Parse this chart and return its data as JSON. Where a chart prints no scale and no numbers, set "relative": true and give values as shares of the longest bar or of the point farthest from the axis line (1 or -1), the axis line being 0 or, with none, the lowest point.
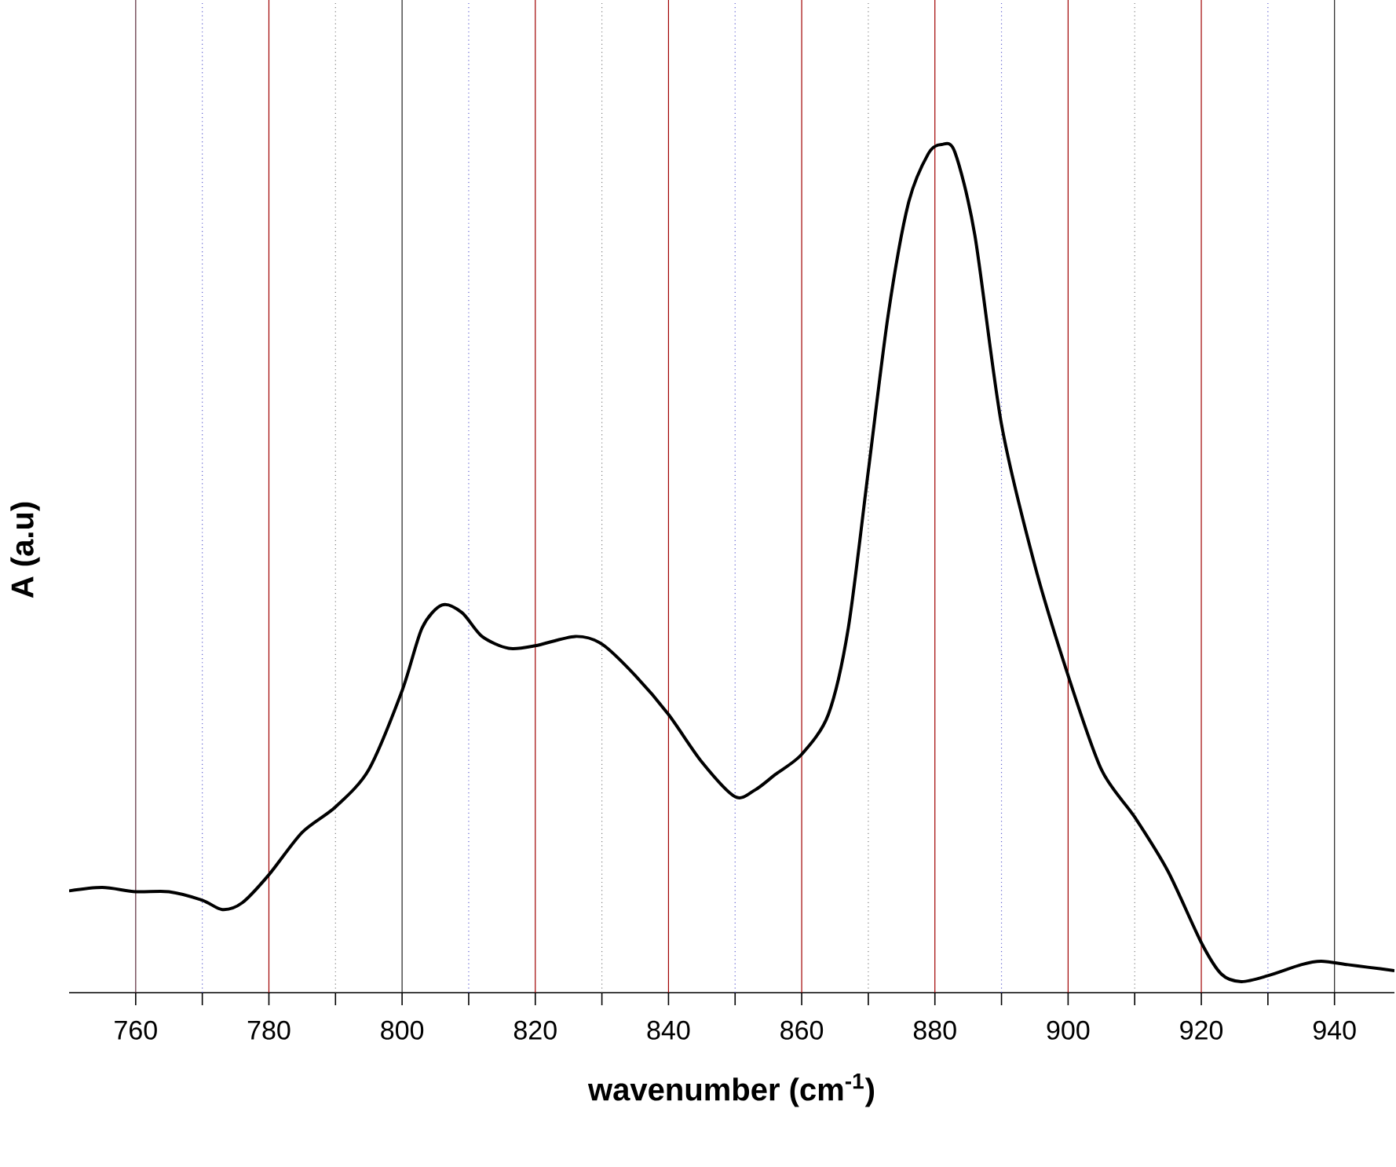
{
  "chart_data": {
    "type": "line",
    "relative": true,
    "xlabel": "wavenumber (cm$^{-1}$)",
    "ylabel": "A (a.u)",
    "xlim": [
      750,
      949
    ],
    "xticks": [
      760,
      {
        "value": 770,
        "label": null
      },
      780,
      {
        "value": 790,
        "label": null
      },
      800,
      {
        "value": 810,
        "label": null
      },
      820,
      {
        "value": 830,
        "label": null
      },
      840,
      {
        "value": 850,
        "label": null
      },
      860,
      {
        "value": 870,
        "label": null
      },
      880,
      {
        "value": 890,
        "label": null
      },
      900,
      {
        "value": 910,
        "label": null
      },
      920,
      {
        "value": 930,
        "label": null
      },
      940
    ],
    "marker": "none",
    "line_style": "solid",
    "tick_labels": "x",
    "series": [
      {
        "color": "#000000",
        "x": [
          750,
          755,
          760,
          765,
          770,
          773,
          776,
          780,
          785,
          790,
          795,
          800,
          803,
          806,
          809,
          812,
          816,
          820,
          826,
          830,
          835,
          840,
          845,
          850,
          853,
          856,
          860,
          864,
          867,
          870,
          873,
          876,
          879,
          881,
          883,
          886,
          890,
          895,
          900,
          905,
          910,
          915,
          920,
          923,
          926,
          930,
          935,
          938,
          942,
          945,
          949
        ],
        "values": [
          0.12,
          0.124,
          0.119,
          0.119,
          0.109,
          0.098,
          0.106,
          0.139,
          0.189,
          0.219,
          0.263,
          0.356,
          0.43,
          0.457,
          0.448,
          0.42,
          0.406,
          0.409,
          0.42,
          0.411,
          0.374,
          0.328,
          0.272,
          0.231,
          0.239,
          0.257,
          0.281,
          0.328,
          0.43,
          0.615,
          0.8,
          0.93,
          0.989,
          1.0,
          0.991,
          0.893,
          0.67,
          0.504,
          0.374,
          0.263,
          0.207,
          0.143,
          0.059,
          0.022,
          0.013,
          0.02,
          0.033,
          0.037,
          0.033,
          0.03,
          0.026
        ]
      }
    ],
    "ref_lines": [
      {
        "axis": "x",
        "value": 760,
        "color": "#5a2a3a",
        "line_style": "solid"
      },
      {
        "axis": "x",
        "value": 770,
        "color": "#6060d0",
        "line_style": "dotted"
      },
      {
        "axis": "x",
        "value": 780,
        "color": "#a00000",
        "line_style": "solid"
      },
      {
        "axis": "x",
        "value": 790,
        "color": "#808080",
        "line_style": "dotted"
      },
      {
        "axis": "x",
        "value": 800,
        "color": "#202020",
        "line_style": "solid"
      },
      {
        "axis": "x",
        "value": 810,
        "color": "#6060d0",
        "line_style": "dotted"
      },
      {
        "axis": "x",
        "value": 820,
        "color": "#a00000",
        "line_style": "solid"
      },
      {
        "axis": "x",
        "value": 830,
        "color": "#808080",
        "line_style": "dotted"
      },
      {
        "axis": "x",
        "value": 840,
        "color": "#a00000",
        "line_style": "solid"
      },
      {
        "axis": "x",
        "value": 850,
        "color": "#6060d0",
        "line_style": "dotted"
      },
      {
        "axis": "x",
        "value": 860,
        "color": "#a00000",
        "line_style": "solid"
      },
      {
        "axis": "x",
        "value": 870,
        "color": "#808080",
        "line_style": "dotted"
      },
      {
        "axis": "x",
        "value": 880,
        "color": "#a00000",
        "line_style": "solid"
      },
      {
        "axis": "x",
        "value": 890,
        "color": "#6060d0",
        "line_style": "dotted"
      },
      {
        "axis": "x",
        "value": 900,
        "color": "#a00000",
        "line_style": "solid"
      },
      {
        "axis": "x",
        "value": 910,
        "color": "#808080",
        "line_style": "dotted"
      },
      {
        "axis": "x",
        "value": 920,
        "color": "#a00000",
        "line_style": "solid"
      },
      {
        "axis": "x",
        "value": 930,
        "color": "#6060d0",
        "line_style": "dotted"
      },
      {
        "axis": "x",
        "value": 940,
        "color": "#202020",
        "line_style": "solid"
      }
    ]
  }
}
